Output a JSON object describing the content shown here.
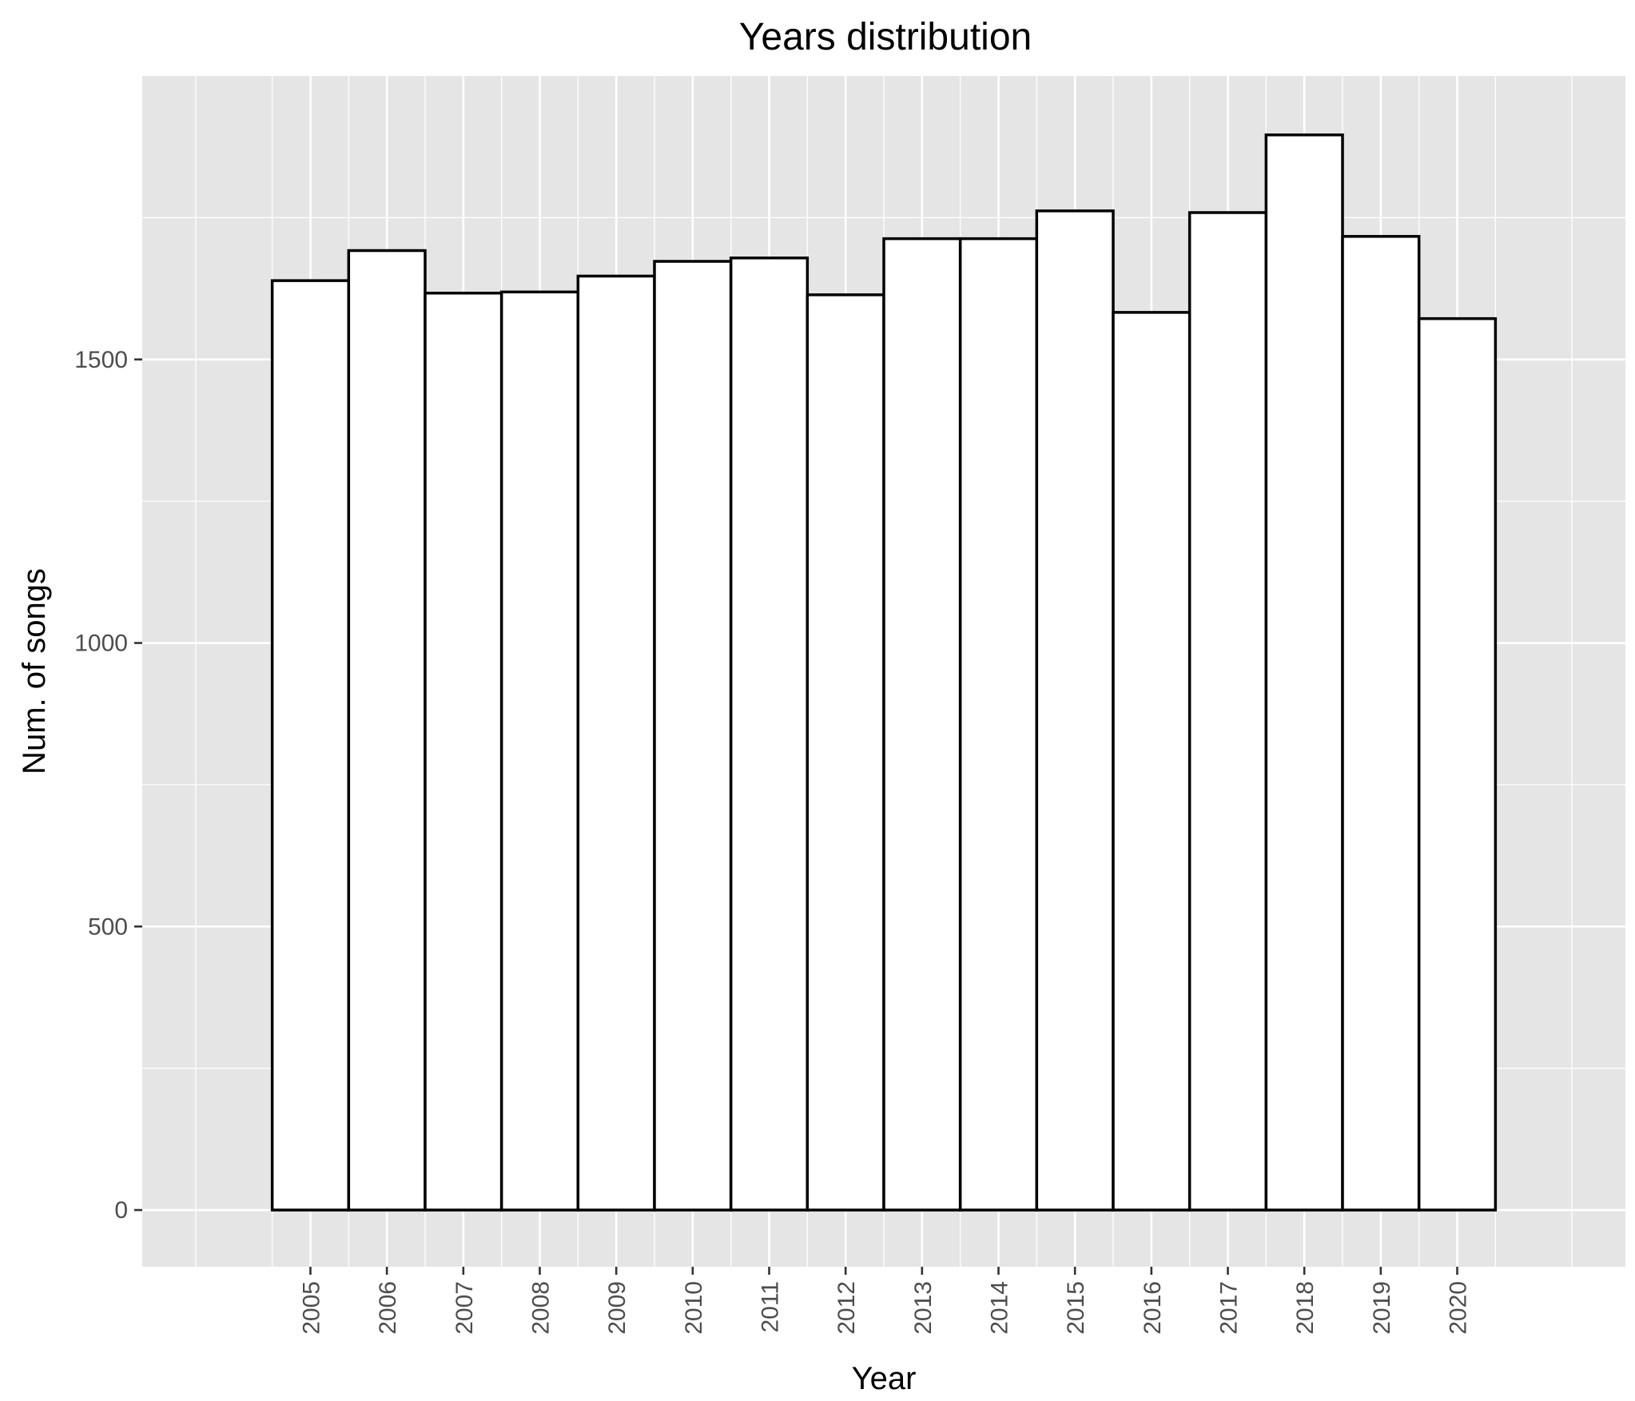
{
  "chart_data": {
    "type": "bar",
    "title": "Years distribution",
    "xlabel": "Year",
    "ylabel": "Num. of songs",
    "categories": [
      "2005",
      "2006",
      "2007",
      "2008",
      "2009",
      "2010",
      "2011",
      "2012",
      "2013",
      "2014",
      "2015",
      "2016",
      "2017",
      "2018",
      "2019",
      "2020"
    ],
    "values": [
      1639,
      1692,
      1617,
      1619,
      1647,
      1673,
      1679,
      1614,
      1713,
      1713,
      1762,
      1583,
      1759,
      1896,
      1717,
      1572
    ],
    "y_ticks": [
      "0",
      "500",
      "1000",
      "1500"
    ],
    "y_tick_values": [
      0,
      500,
      1000,
      1500
    ],
    "ylim": [
      -100,
      2000
    ],
    "xlim": [
      2002.8,
      2022.2
    ],
    "grid": true,
    "legend": "none",
    "colors": {
      "panel_background": "#e5e5e5",
      "grid": "#ffffff",
      "bar_fill": "#ffffff",
      "bar_outline": "#000000",
      "tick_label": "#4d4d4d"
    }
  }
}
